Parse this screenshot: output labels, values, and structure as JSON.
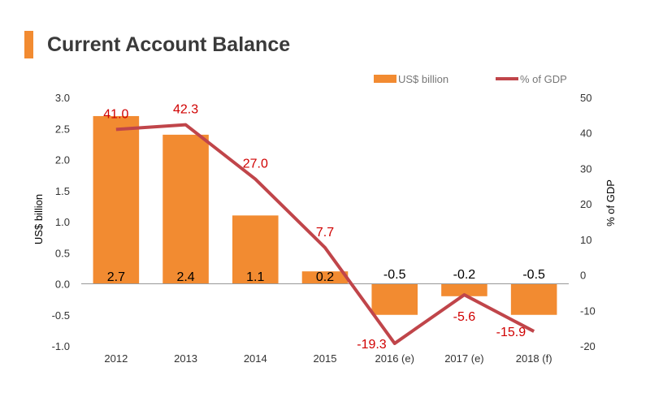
{
  "title": "Current Account Balance",
  "colors": {
    "bar": "#f28b31",
    "line": "#c0454a",
    "label": "#d00000",
    "axis_text": "#000000",
    "title_accent": "#f28b31"
  },
  "chart_data": {
    "type": "bar",
    "categories": [
      "2012",
      "2013",
      "2014",
      "2015",
      "2016 (e)",
      "2017 (e)",
      "2018 (f)"
    ],
    "series": [
      {
        "name": "US$ billion",
        "type": "bar",
        "axis": "left",
        "values": [
          2.7,
          2.4,
          1.1,
          0.2,
          -0.5,
          -0.2,
          -0.5
        ]
      },
      {
        "name": "% of GDP",
        "type": "line",
        "axis": "right",
        "values": [
          41.0,
          42.3,
          27.0,
          7.7,
          -19.3,
          -5.6,
          -15.9
        ]
      }
    ],
    "ylabel": "US$ billion",
    "y2label": "% of GDP",
    "ylim": [
      -1.0,
      3.0
    ],
    "y2lim": [
      -20,
      50
    ],
    "yticks": [
      "3.0",
      "2.5",
      "2.0",
      "1.5",
      "1.0",
      "0.5",
      "0.0",
      "-0.5",
      "-1.0"
    ],
    "y2ticks": [
      "50",
      "40",
      "30",
      "20",
      "10",
      "0",
      "-10",
      "-20"
    ],
    "bar_labels": [
      "2.7",
      "2.4",
      "1.1",
      "0.2",
      "-0.5",
      "-0.2",
      "-0.5"
    ],
    "line_labels": [
      "41.0",
      "42.3",
      "27.0",
      "7.7",
      "-19.3",
      "-5.6",
      "-15.9"
    ],
    "legend": {
      "position": "top-right",
      "items": [
        "US$ billion",
        "% of GDP"
      ]
    },
    "grid": false
  }
}
